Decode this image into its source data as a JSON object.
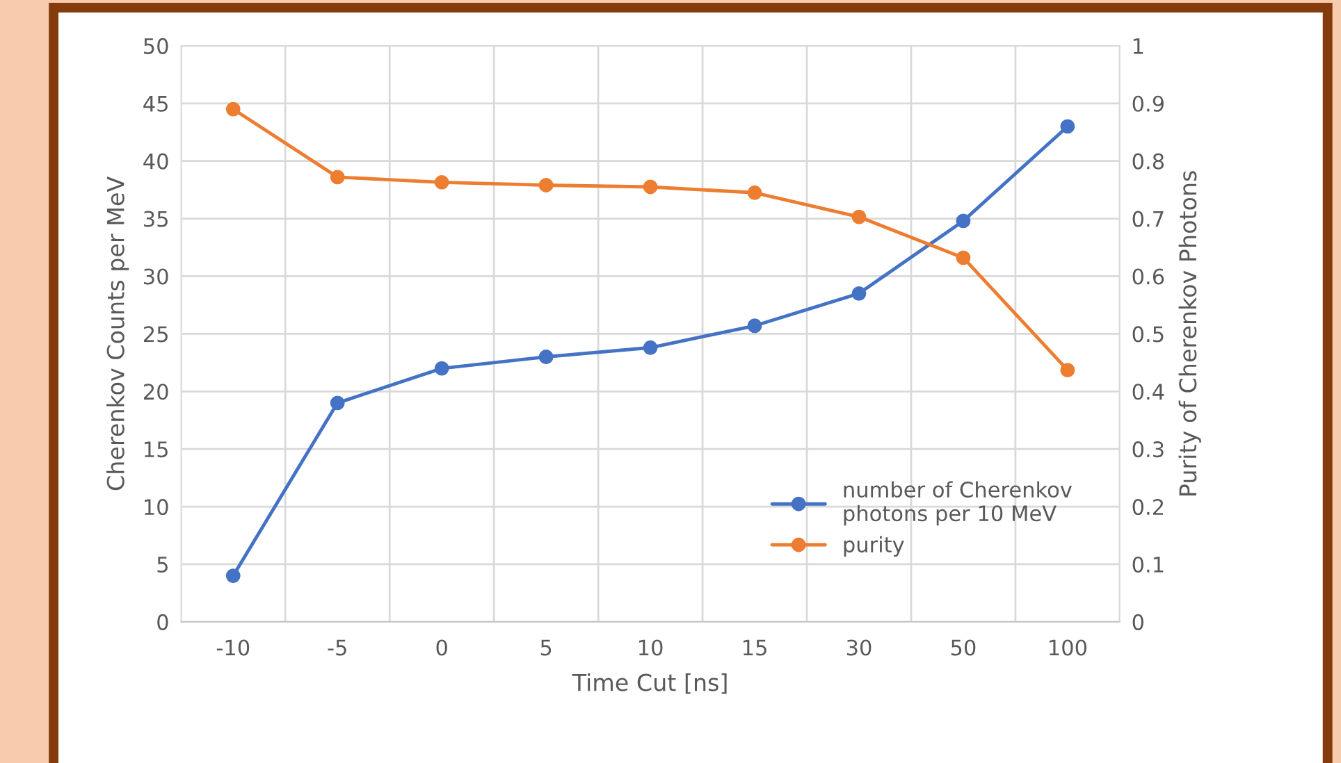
{
  "chart_data": {
    "type": "line",
    "categories": [
      "-10",
      "-5",
      "0",
      "5",
      "10",
      "15",
      "30",
      "50",
      "100"
    ],
    "xlabel": "Time Cut [ns]",
    "ylabel": "Cherenkov Counts per MeV",
    "y2label": "Purity of Cherenkov Photons",
    "series": [
      {
        "name": "number of Cherenkov\nphotons per 10 MeV",
        "color": "#4472c4",
        "values": [
          4.0,
          19.0,
          22.0,
          23.0,
          23.8,
          25.7,
          28.5,
          34.8,
          43.0
        ]
      },
      {
        "name": "purity",
        "color": "#ed7d31",
        "axis": "y2",
        "values": [
          0.89,
          0.772,
          0.763,
          0.758,
          0.755,
          0.745,
          0.703,
          0.632,
          0.437
        ]
      }
    ],
    "ylim": [
      0,
      50
    ],
    "yticks": [
      0,
      5,
      10,
      15,
      20,
      25,
      30,
      35,
      40,
      45,
      50
    ],
    "y2lim": [
      0,
      1
    ],
    "y2ticks": [
      0,
      0.1,
      0.2,
      0.3,
      0.4,
      0.5,
      0.6,
      0.7,
      0.8,
      0.9,
      1
    ],
    "grid": true,
    "legend": "lower right",
    "marker": "circle",
    "line_style": "solid"
  }
}
